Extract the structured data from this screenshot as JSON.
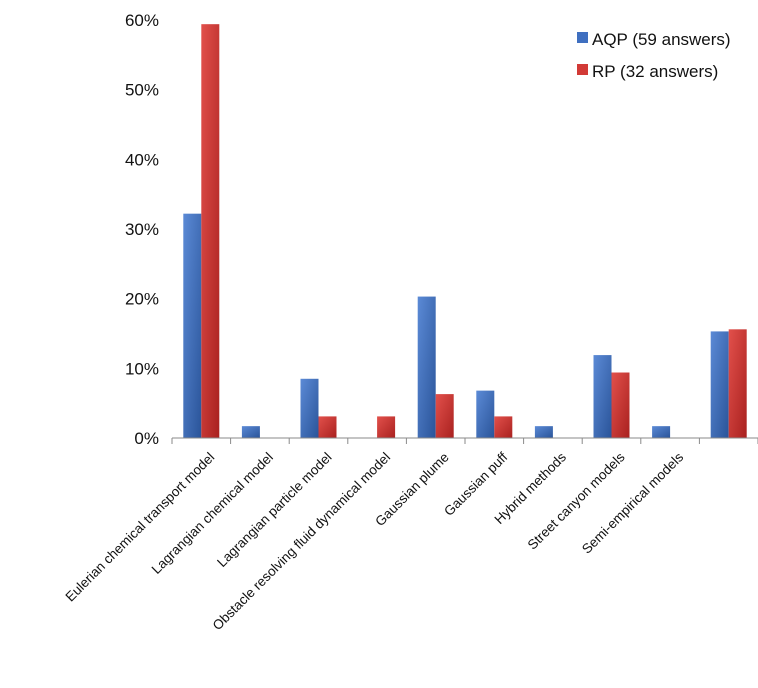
{
  "chart_data": {
    "type": "bar",
    "categories": [
      "Eulerian chemical transport model",
      "Lagrangian chemical model",
      "Lagrangian particle model",
      "Obstacle resolving fluid dynamical model",
      "Gaussian plume",
      "Gaussian puff",
      "Hybrid methods",
      "Street canyon models",
      "Semi-empirical models",
      ""
    ],
    "series": [
      {
        "name": "AQP (59 answers)",
        "color": "#3f6fc0",
        "values": [
          32.2,
          1.7,
          8.5,
          0,
          20.3,
          6.8,
          1.7,
          11.9,
          1.7,
          15.3
        ]
      },
      {
        "name": "RP (32 answers)",
        "color": "#d23a36",
        "values": [
          59.4,
          0,
          3.1,
          3.1,
          6.3,
          3.1,
          0,
          9.4,
          0,
          15.6
        ]
      }
    ],
    "ylim": [
      0,
      60
    ],
    "yticks": [
      0,
      10,
      20,
      30,
      40,
      50,
      60
    ],
    "ytick_labels": [
      "0%",
      "10%",
      "20%",
      "30%",
      "40%",
      "50%",
      "60%"
    ],
    "title": "",
    "xlabel": "",
    "ylabel": "",
    "grid": false,
    "legend_position": "top-right"
  }
}
